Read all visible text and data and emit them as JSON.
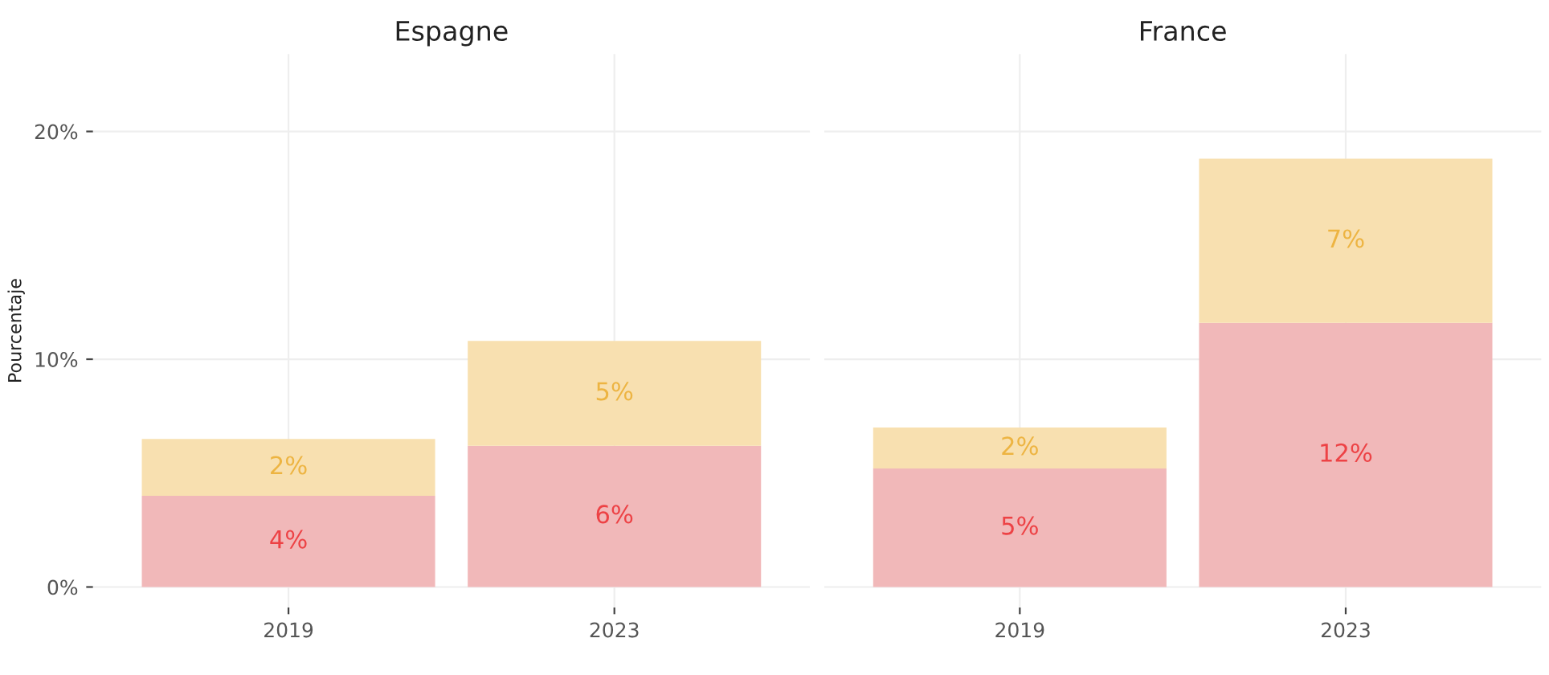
{
  "chart_data": [
    {
      "type": "bar",
      "title": "Espagne",
      "ylabel": "Pourcentaje",
      "categories": [
        "2019",
        "2023"
      ],
      "stacked": true,
      "grid": true,
      "legend": false,
      "series": [
        {
          "color": "#f1b8b9",
          "values": [
            4.0,
            6.2
          ],
          "value_labels": [
            "4%",
            "6%"
          ]
        },
        {
          "color": "#f8e0b0",
          "values": [
            2.5,
            4.6
          ],
          "value_labels": [
            "2%",
            "5%"
          ]
        }
      ],
      "ylim": [
        -0.9,
        23.4
      ],
      "yticks": [
        {
          "value": 0,
          "label": "0%"
        },
        {
          "value": 10,
          "label": "10%"
        },
        {
          "value": 20,
          "label": "20%"
        }
      ]
    },
    {
      "type": "bar",
      "title": "France",
      "categories": [
        "2019",
        "2023"
      ],
      "stacked": true,
      "grid": true,
      "legend": false,
      "tick_labels": "x",
      "series": [
        {
          "color": "#f1b8b9",
          "values": [
            5.2,
            11.6
          ],
          "value_labels": [
            "5%",
            "12%"
          ]
        },
        {
          "color": "#f8e0b0",
          "values": [
            1.8,
            7.2
          ],
          "value_labels": [
            "2%",
            "7%"
          ]
        }
      ],
      "ylim": [
        -0.9,
        23.4
      ],
      "yticks": [
        {
          "value": 0,
          "label": null
        },
        {
          "value": 10,
          "label": null
        },
        {
          "value": 20,
          "label": null
        }
      ]
    }
  ]
}
